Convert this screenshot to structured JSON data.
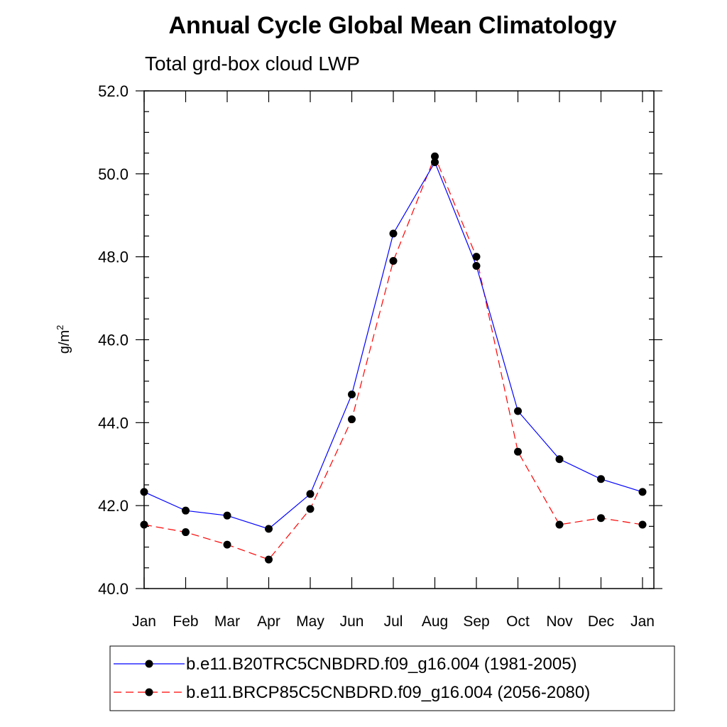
{
  "chart_data": {
    "type": "line",
    "title": "Annual Cycle Global Mean Climatology",
    "subtitle": "Total grd-box cloud LWP",
    "xlabel": "",
    "ylabel": "g/m",
    "ylabel_superscript": "2",
    "ylim": [
      40.0,
      52.0
    ],
    "y_ticks": [
      "40.0",
      "42.0",
      "44.0",
      "46.0",
      "48.0",
      "50.0",
      "52.0"
    ],
    "y_tick_values": [
      40,
      42,
      44,
      46,
      48,
      50,
      52
    ],
    "y_minor_step": 0.5,
    "categories": [
      "Jan",
      "Feb",
      "Mar",
      "Apr",
      "May",
      "Jun",
      "Jul",
      "Aug",
      "Sep",
      "Oct",
      "Nov",
      "Dec",
      "Jan"
    ],
    "grid": false,
    "legend_placement": "bottom",
    "series": [
      {
        "name": "b.e11.B20TRC5CNBDRD.f09_g16.004 (1981-2005)",
        "color": "#0000ff",
        "line_style": "solid",
        "marker": "filled-circle",
        "values": [
          42.33,
          41.88,
          41.76,
          41.44,
          42.28,
          44.68,
          48.56,
          50.28,
          47.78,
          44.28,
          43.12,
          42.64,
          42.33
        ]
      },
      {
        "name": "b.e11.BRCP85C5CNBDRD.f09_g16.004 (2056-2080)",
        "color": "#ff0000",
        "line_style": "dashed",
        "marker": "filled-circle",
        "values": [
          41.54,
          41.36,
          41.06,
          40.7,
          41.92,
          44.08,
          47.9,
          50.42,
          48.0,
          43.3,
          41.54,
          41.7,
          41.54
        ]
      }
    ]
  }
}
